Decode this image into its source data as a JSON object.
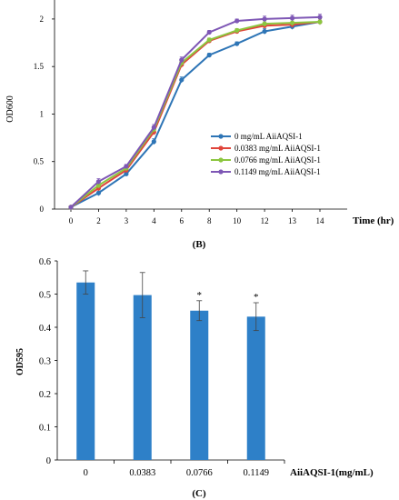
{
  "chart_data": [
    {
      "type": "line",
      "panel_label": "",
      "xlabel": "Time (hr)",
      "ylabel": "OD600",
      "x": [
        "0",
        "2",
        "3",
        "4",
        "6",
        "8",
        "10",
        "12",
        "13",
        "14"
      ],
      "ylim": [
        0,
        2.2
      ],
      "yticks": [
        "0",
        "0.5",
        "1",
        "1.5",
        "2"
      ],
      "legend_position": "right",
      "grid": false,
      "series": [
        {
          "name": "0 mg/mL AiiAQSI-1",
          "color": "#2e75b6",
          "values": [
            0.02,
            0.17,
            0.37,
            0.71,
            1.36,
            1.62,
            1.74,
            1.87,
            1.92,
            1.97
          ]
        },
        {
          "name": "0.0383 mg/mL AiiAQSI-1",
          "color": "#e0453b",
          "values": [
            0.02,
            0.22,
            0.41,
            0.81,
            1.52,
            1.77,
            1.87,
            1.93,
            1.94,
            1.97
          ]
        },
        {
          "name": "0.0766 mg/mL AiiAQSI-1",
          "color": "#8cc63f",
          "values": [
            0.02,
            0.25,
            0.43,
            0.84,
            1.54,
            1.78,
            1.88,
            1.95,
            1.96,
            1.97
          ]
        },
        {
          "name": "0.1149 mg/mL AiiAQSI-1",
          "color": "#7e57b5",
          "values": [
            0.02,
            0.29,
            0.45,
            0.86,
            1.57,
            1.86,
            1.98,
            2.0,
            2.01,
            2.02
          ]
        }
      ],
      "errors": [
        0.0,
        0.03,
        0.02,
        0.03,
        0.03,
        0.02,
        0.02,
        0.03,
        0.03,
        0.03
      ]
    },
    {
      "type": "bar",
      "panel_label": "(B)",
      "xlabel": "AiiAQSI-1(mg/mL)",
      "ylabel": "OD595",
      "categories": [
        "0",
        "0.0383",
        "0.0766",
        "0.1149"
      ],
      "values": [
        0.535,
        0.497,
        0.45,
        0.432
      ],
      "errors": [
        0.035,
        0.068,
        0.03,
        0.042
      ],
      "annotations": [
        "",
        "",
        "*",
        "*"
      ],
      "ylim": [
        0,
        0.6
      ],
      "yticks": [
        "0",
        "0.1",
        "0.2",
        "0.3",
        "0.4",
        "0.5",
        "0.6"
      ],
      "color": "#2e80c8",
      "grid": false
    }
  ],
  "bottom_label": "(C)"
}
